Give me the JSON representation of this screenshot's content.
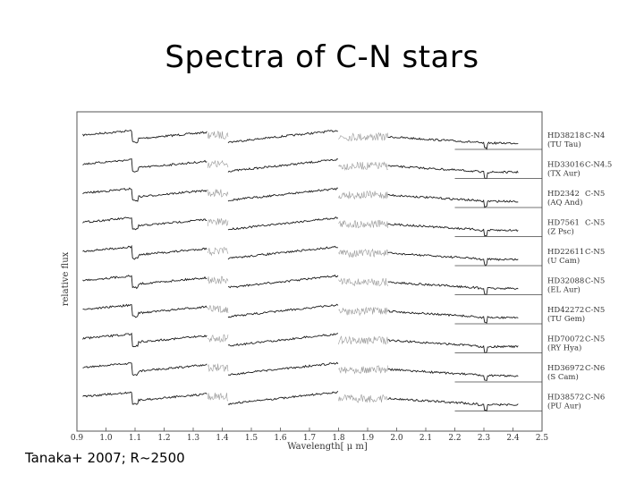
{
  "slide": {
    "title": "Spectra of C-N stars",
    "caption": "Tanaka+ 2007; R~2500"
  },
  "chart_data": {
    "type": "line",
    "title": "",
    "xlabel": "Wavelength[ μ m]",
    "ylabel": "relative flux",
    "xlim": [
      0.9,
      2.5
    ],
    "x_ticks": [
      "0.9",
      "1.0",
      "1.1",
      "1.2",
      "1.3",
      "1.4",
      "1.5",
      "1.6",
      "1.7",
      "1.8",
      "1.9",
      "2.0",
      "2.1",
      "2.2",
      "2.3",
      "2.4",
      "2.5"
    ],
    "series": [
      {
        "name": "HD38218",
        "alias": "(TU Tau)",
        "type": "C-N4"
      },
      {
        "name": "HD33016",
        "alias": "(TX Aur)",
        "type": "C-N4.5"
      },
      {
        "name": "HD2342",
        "alias": "(AQ And)",
        "type": "C-N5"
      },
      {
        "name": "HD7561",
        "alias": "(Z Psc)",
        "type": "C-N5"
      },
      {
        "name": "HD22611",
        "alias": "(U Cam)",
        "type": "C-N5"
      },
      {
        "name": "HD32088",
        "alias": "(EL Aur)",
        "type": "C-N5"
      },
      {
        "name": "HD42272",
        "alias": "(TU Gem)",
        "type": "C-N5"
      },
      {
        "name": "HD70072",
        "alias": "(RY Hya)",
        "type": "C-N5"
      },
      {
        "name": "HD36972",
        "alias": "(S Cam)",
        "type": "C-N6"
      },
      {
        "name": "HD38572",
        "alias": "(PU Aur)",
        "type": "C-N6"
      }
    ],
    "colors": {
      "spectrum": "#1a1a1a",
      "noisy_band": "#9a9a9a",
      "frame": "#555555"
    }
  }
}
